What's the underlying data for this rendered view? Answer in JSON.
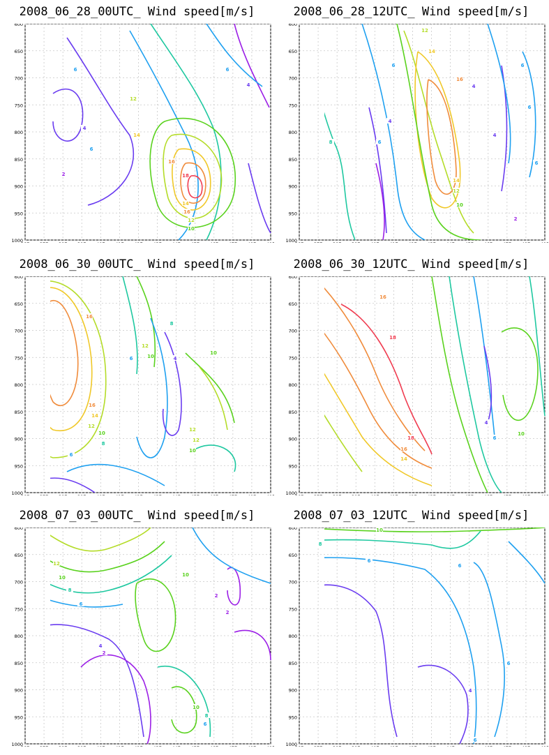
{
  "chart_data": [
    {
      "type": "contour",
      "title": "2008_06_28_00UTC_ Wind speed[m/s]",
      "x_ticks": [
        "36E",
        "37E",
        "38E",
        "39E",
        "40E",
        "41E",
        "42E",
        "43E",
        "44E",
        "45E",
        "46E",
        "47E",
        "48E",
        "49E"
      ],
      "y_ticks": [
        "600",
        "650",
        "700",
        "750",
        "800",
        "850",
        "900",
        "950",
        "1000"
      ],
      "xlim": [
        36,
        49
      ],
      "ylim": [
        1000,
        600
      ],
      "grid": true,
      "contour_labels": [
        "2",
        "4",
        "6",
        "6",
        "12",
        "14",
        "16",
        "18",
        "14",
        "16",
        "12",
        "10",
        "6",
        "4"
      ]
    },
    {
      "type": "contour",
      "title": "2008_06_28_12UTC_ Wind speed[m/s]",
      "x_ticks": [
        "36E",
        "37E",
        "38E",
        "39E",
        "40E",
        "41E",
        "42E",
        "43E",
        "44E",
        "45E",
        "46E",
        "47E",
        "48E",
        "49E"
      ],
      "y_ticks": [
        "600",
        "650",
        "700",
        "750",
        "800",
        "850",
        "900",
        "950",
        "1000"
      ],
      "xlim": [
        36,
        49
      ],
      "ylim": [
        1000,
        600
      ],
      "grid": true,
      "contour_labels": [
        "8",
        "12",
        "14",
        "16",
        "14",
        "12",
        "10",
        "4",
        "6",
        "6",
        "4",
        "2",
        "6",
        "6",
        "6",
        "4"
      ]
    },
    {
      "type": "contour",
      "title": "2008_06_30_00UTC_ Wind speed[m/s]",
      "x_ticks": [
        "36E",
        "37E",
        "38E",
        "39E",
        "40E",
        "41E",
        "42E",
        "43E",
        "44E",
        "45E",
        "46E",
        "47E",
        "48E",
        "49E"
      ],
      "y_ticks": [
        "600",
        "650",
        "700",
        "750",
        "800",
        "850",
        "900",
        "950",
        "1000"
      ],
      "xlim": [
        36,
        49
      ],
      "ylim": [
        1000,
        600
      ],
      "grid": true,
      "contour_labels": [
        "16",
        "12",
        "10",
        "8",
        "6",
        "4",
        "10",
        "12",
        "16",
        "14",
        "12",
        "10",
        "8",
        "6",
        "12",
        "10",
        "8",
        "4"
      ]
    },
    {
      "type": "contour",
      "title": "2008_06_30_12UTC_ Wind speed[m/s]",
      "x_ticks": [
        "36E",
        "37E",
        "38E",
        "39E",
        "40E",
        "41E",
        "42E",
        "43E",
        "44E",
        "45E",
        "46E",
        "47E",
        "48E",
        "49E"
      ],
      "y_ticks": [
        "600",
        "650",
        "700",
        "750",
        "800",
        "850",
        "900",
        "950",
        "1000"
      ],
      "xlim": [
        36,
        49
      ],
      "ylim": [
        1000,
        600
      ],
      "grid": true,
      "contour_labels": [
        "16",
        "18",
        "18",
        "16",
        "14",
        "4",
        "6",
        "10"
      ]
    },
    {
      "type": "contour",
      "title": "2008_07_03_00UTC_ Wind speed[m/s]",
      "x_ticks": [
        "36E",
        "37E",
        "38E",
        "39E",
        "40E",
        "41E",
        "42E",
        "43E",
        "44E",
        "45E",
        "46E",
        "47E",
        "48E",
        "49E"
      ],
      "y_ticks": [
        "600",
        "650",
        "700",
        "750",
        "800",
        "850",
        "900",
        "950",
        "1000"
      ],
      "xlim": [
        36,
        49
      ],
      "ylim": [
        1000,
        600
      ],
      "grid": true,
      "contour_labels": [
        "12",
        "10",
        "8",
        "6",
        "4",
        "2",
        "10",
        "2",
        "2",
        "10",
        "8",
        "6"
      ]
    },
    {
      "type": "contour",
      "title": "2008_07_03_12UTC_ Wind speed[m/s]",
      "x_ticks": [
        "36E",
        "37E",
        "38E",
        "39E",
        "40E",
        "41E",
        "42E",
        "43E",
        "44E",
        "45E",
        "46E",
        "47E",
        "48E",
        "49E"
      ],
      "y_ticks": [
        "600",
        "650",
        "700",
        "750",
        "800",
        "850",
        "900",
        "950",
        "1000"
      ],
      "xlim": [
        36,
        49
      ],
      "ylim": [
        1000,
        600
      ],
      "grid": true,
      "contour_labels": [
        "10",
        "8",
        "6",
        "6",
        "6",
        "4",
        "6"
      ]
    }
  ],
  "level_colors": {
    "2": "#9b1ee6",
    "4": "#6a3cf0",
    "6": "#1ea0f0",
    "8": "#1ec8a0",
    "10": "#5ad21e",
    "12": "#b4dc28",
    "14": "#f0c828",
    "16": "#f08c3c",
    "18": "#f03c50"
  }
}
